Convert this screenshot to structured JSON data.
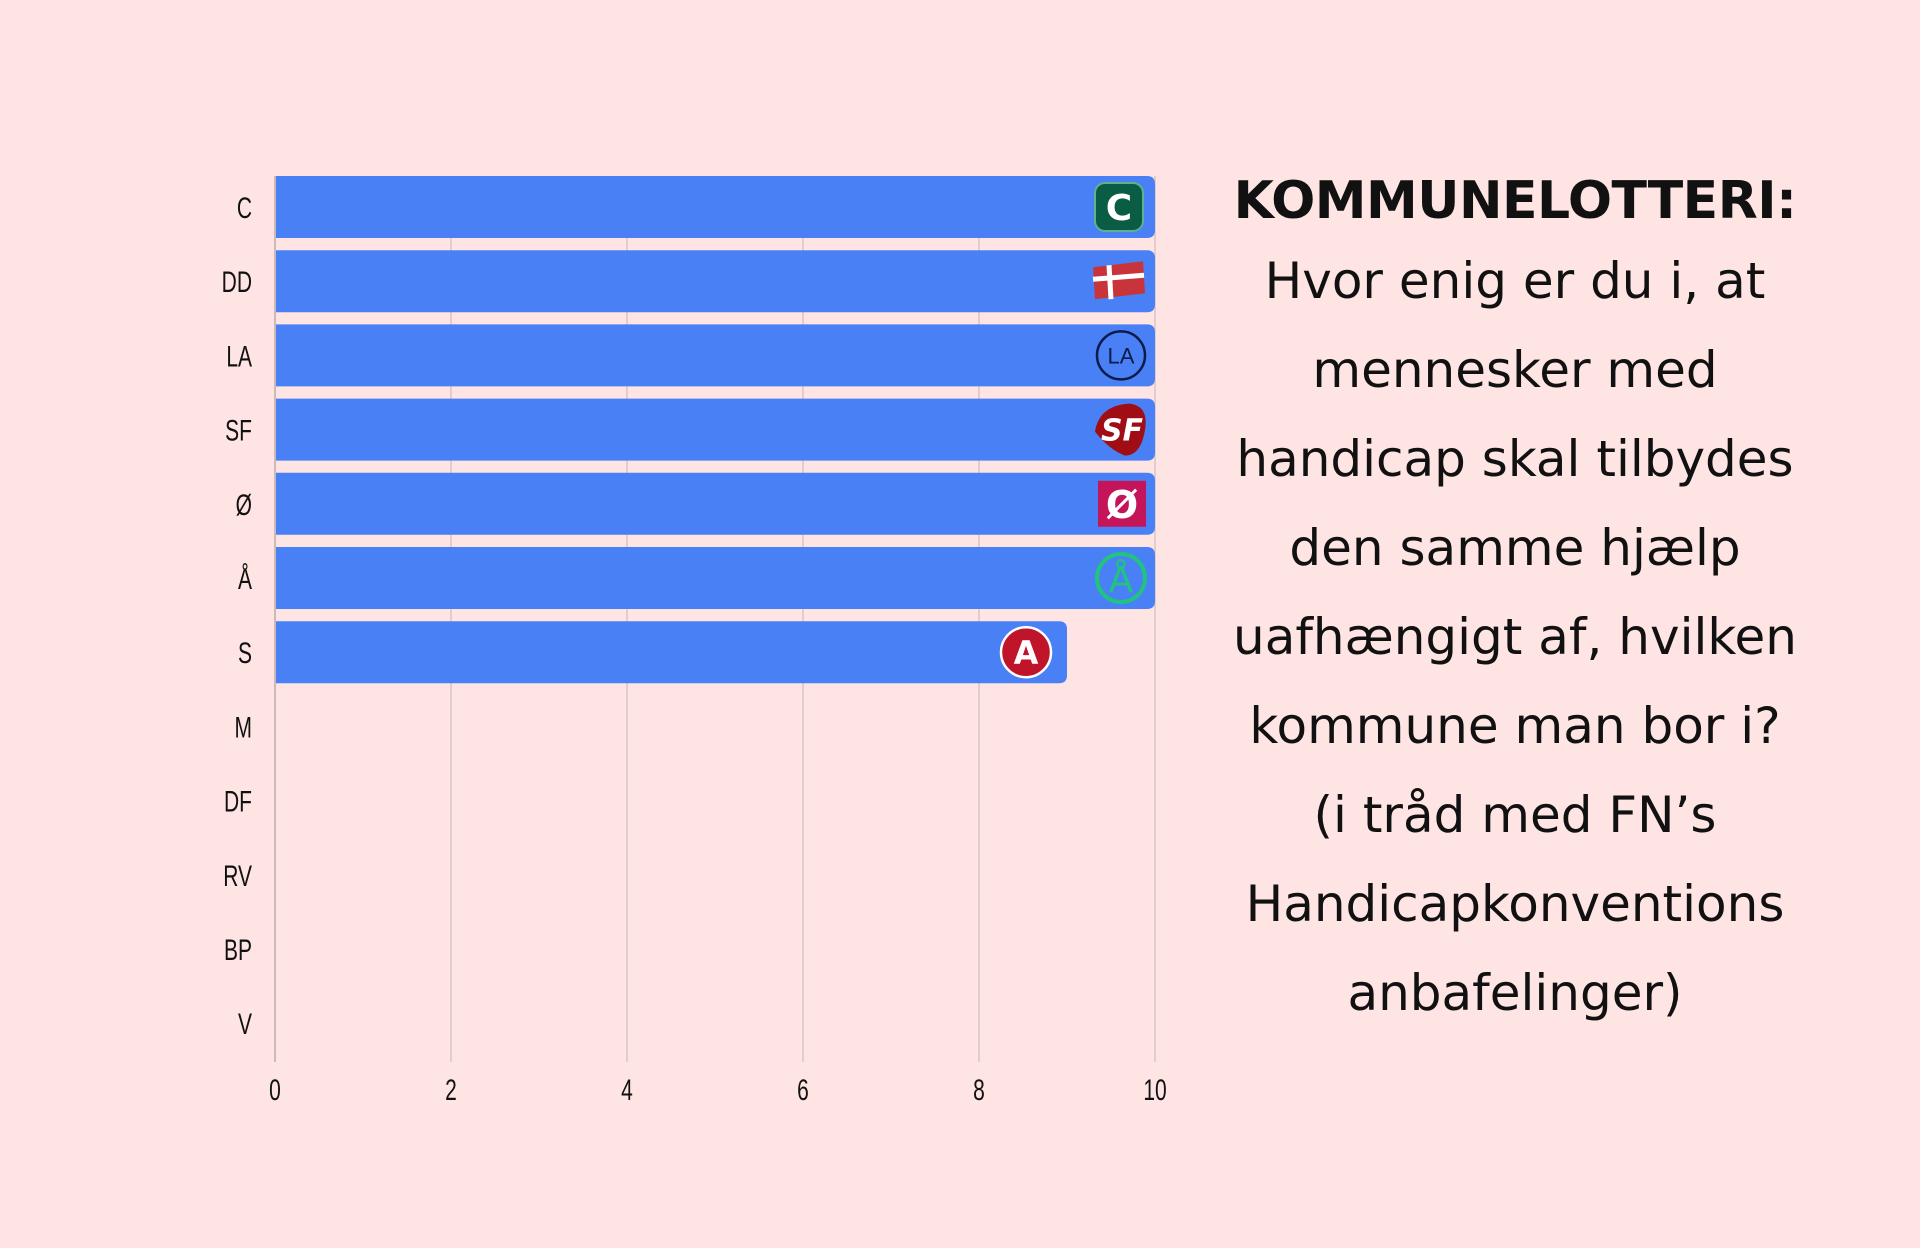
{
  "chart_data": {
    "type": "bar",
    "orientation": "horizontal",
    "title": "KOMMUNELOTTERI:",
    "subtitle_lines": [
      "Hvor enig er du i, at",
      "mennesker med",
      "handicap skal tilbydes",
      "den samme hjælp",
      "uafhængigt af, hvilken",
      "kommune man bor i?",
      "(i tråd med FN’s",
      "Handicapkonventions",
      "anbafelinger)"
    ],
    "categories": [
      "C",
      "DD",
      "LA",
      "SF",
      "Ø",
      "Å",
      "S",
      "M",
      "DF",
      "RV",
      "BP",
      "V"
    ],
    "values": [
      10,
      10,
      10,
      10,
      10,
      10,
      9,
      0,
      0,
      0,
      0,
      0
    ],
    "logos": [
      "C",
      "dannebrog-icon",
      "LA",
      "SF",
      "Ø",
      "Å",
      "A",
      null,
      null,
      null,
      null,
      null
    ],
    "logo_colors": [
      "#0a5c44",
      "#c8343a",
      "#0b1b4a",
      "#a00d14",
      "#c4145a",
      "#1fc57e",
      "#c0142a",
      null,
      null,
      null,
      null,
      null
    ],
    "xlim": [
      0,
      10
    ],
    "xticks": [
      "0",
      "2",
      "4",
      "6",
      "8",
      "10"
    ],
    "grid": true,
    "bar_color": "#4a80f5",
    "xlabel": "",
    "ylabel": ""
  }
}
